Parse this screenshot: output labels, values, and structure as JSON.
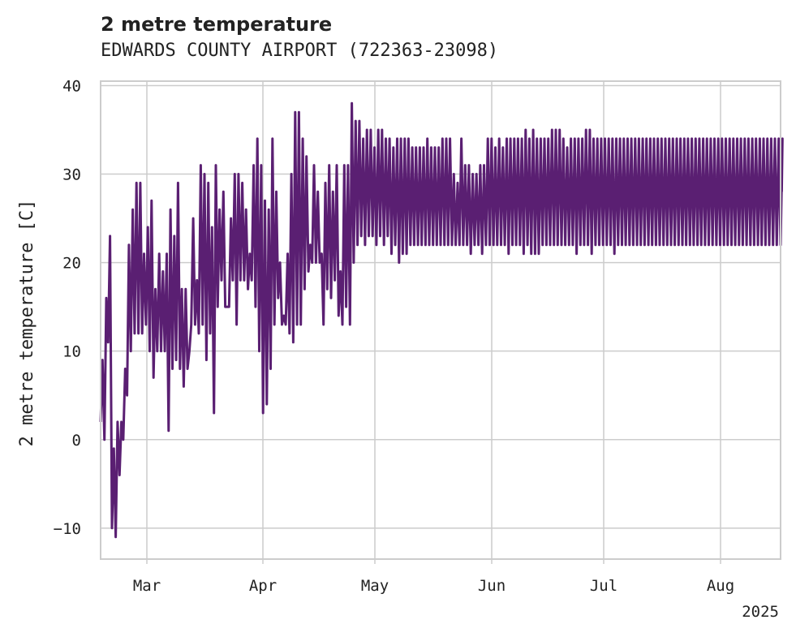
{
  "chart_data": {
    "type": "line",
    "title": "2 metre temperature",
    "subtitle": "EDWARDS COUNTY AIRPORT (722363-23098)",
    "xlabel": "",
    "ylabel": "2 metre temperature [C]",
    "x_tick_labels": [
      "Mar",
      "Apr",
      "May",
      "Jun",
      "Jul",
      "Aug"
    ],
    "x_offset_label": "2025",
    "y_ticks": [
      -10,
      0,
      10,
      20,
      30,
      40
    ],
    "ylim": [
      -13.5,
      40.5
    ],
    "xlim": [
      0,
      180
    ],
    "grid": true,
    "series": [
      {
        "name": "2 metre temperature",
        "color": "#5a1f72",
        "x": [
          0,
          1,
          2,
          3,
          4,
          5,
          6,
          7,
          8,
          9,
          10,
          11,
          12,
          13,
          14,
          15,
          16,
          17,
          18,
          19,
          20,
          21,
          22,
          23,
          24,
          25,
          26,
          27,
          28,
          29,
          30,
          31,
          32,
          33,
          34,
          35,
          36,
          37,
          38,
          39,
          40,
          41,
          42,
          43,
          44,
          45,
          46,
          47,
          48,
          49,
          50,
          51,
          52,
          53,
          54,
          55,
          56,
          57,
          58,
          59,
          60,
          61,
          62,
          63,
          64,
          65,
          66,
          67,
          68,
          69,
          70,
          71,
          72,
          73,
          74,
          75,
          76,
          77,
          78,
          79,
          80,
          81,
          82,
          83,
          84,
          85,
          86,
          87,
          88,
          89,
          90,
          91,
          92,
          93,
          94,
          95,
          96,
          97,
          98,
          99,
          100,
          101,
          102,
          103,
          104,
          105,
          106,
          107,
          108,
          109,
          110,
          111,
          112,
          113,
          114,
          115,
          116,
          117,
          118,
          119,
          120,
          121,
          122,
          123,
          124,
          125,
          126,
          127,
          128,
          129,
          130,
          131,
          132,
          133,
          134,
          135,
          136,
          137,
          138,
          139,
          140,
          141,
          142,
          143,
          144,
          145,
          146,
          147,
          148,
          149,
          150,
          151,
          152,
          153,
          154,
          155,
          156,
          157,
          158,
          159,
          160,
          161,
          162,
          163,
          164,
          165,
          166,
          167,
          168,
          169,
          170,
          171,
          172,
          173,
          174,
          175,
          176,
          177,
          178,
          179,
          180
        ],
        "y_max": [
          9,
          16,
          23,
          -1,
          2,
          2,
          8,
          22,
          26,
          29,
          29,
          21,
          24,
          27,
          17,
          21,
          19,
          21,
          26,
          23,
          29,
          17,
          17,
          10,
          25,
          18,
          31,
          30,
          29,
          24,
          31,
          26,
          28,
          15,
          25,
          30,
          30,
          29,
          26,
          21,
          31,
          34,
          31,
          27,
          26,
          34,
          28,
          20,
          14,
          21,
          30,
          37,
          37,
          34,
          32,
          22,
          31,
          28,
          21,
          29,
          31,
          28,
          31,
          19,
          31,
          31,
          38,
          36,
          36,
          34,
          35,
          35,
          33,
          35,
          35,
          34,
          34,
          33,
          34,
          34,
          34,
          34,
          33,
          33,
          33,
          33,
          34,
          33,
          33,
          33,
          34,
          34,
          34,
          30,
          29,
          34,
          31,
          31,
          30,
          30,
          31,
          31,
          34,
          34,
          33,
          34,
          33,
          34,
          34,
          34,
          34,
          34,
          35,
          34,
          35,
          34,
          34,
          34,
          34,
          35,
          35,
          35,
          34,
          33,
          34,
          34,
          34,
          34,
          35,
          35,
          34,
          34,
          34,
          34,
          34,
          34,
          34,
          34,
          34,
          34,
          34,
          34,
          34,
          34,
          34,
          34,
          34,
          34,
          34,
          34,
          34,
          34,
          34,
          34,
          34,
          34,
          34,
          34,
          34,
          34,
          34,
          34,
          34,
          34,
          34,
          34,
          34,
          34,
          34,
          34,
          34,
          34,
          34,
          34,
          34,
          34,
          34,
          34,
          34,
          34,
          34
        ],
        "y_min": [
          2,
          0,
          11,
          -10,
          -11,
          -4,
          0,
          5,
          10,
          12,
          12,
          12,
          13,
          10,
          7,
          10,
          10,
          10,
          1,
          8,
          9,
          8,
          6,
          8,
          13,
          13,
          12,
          13,
          9,
          12,
          3,
          15,
          18,
          15,
          15,
          18,
          13,
          18,
          18,
          17,
          18,
          15,
          10,
          3,
          4,
          8,
          13,
          16,
          13,
          13,
          12,
          11,
          13,
          13,
          17,
          19,
          20,
          20,
          20,
          13,
          17,
          16,
          18,
          14,
          13,
          15,
          13,
          20,
          22,
          23,
          22,
          23,
          23,
          22,
          23,
          22,
          23,
          21,
          22,
          20,
          21,
          21,
          22,
          22,
          22,
          22,
          22,
          22,
          22,
          22,
          22,
          22,
          22,
          22,
          22,
          22,
          22,
          22,
          21,
          22,
          22,
          21,
          22,
          22,
          22,
          22,
          22,
          22,
          21,
          22,
          22,
          22,
          21,
          22,
          21,
          21,
          21,
          22,
          22,
          22,
          22,
          22,
          22,
          22,
          22,
          22,
          21,
          22,
          22,
          22,
          21,
          22,
          22,
          22,
          22,
          22,
          21,
          22,
          22,
          22,
          22,
          22,
          22,
          22,
          22,
          22,
          22,
          22,
          22,
          22,
          22,
          22,
          22,
          22,
          22,
          22,
          22,
          22,
          22,
          22,
          22,
          22,
          22,
          22,
          22,
          22,
          22,
          22,
          22,
          22,
          22,
          22,
          22,
          22,
          22,
          22,
          22,
          22,
          22,
          22,
          22
        ]
      }
    ]
  }
}
